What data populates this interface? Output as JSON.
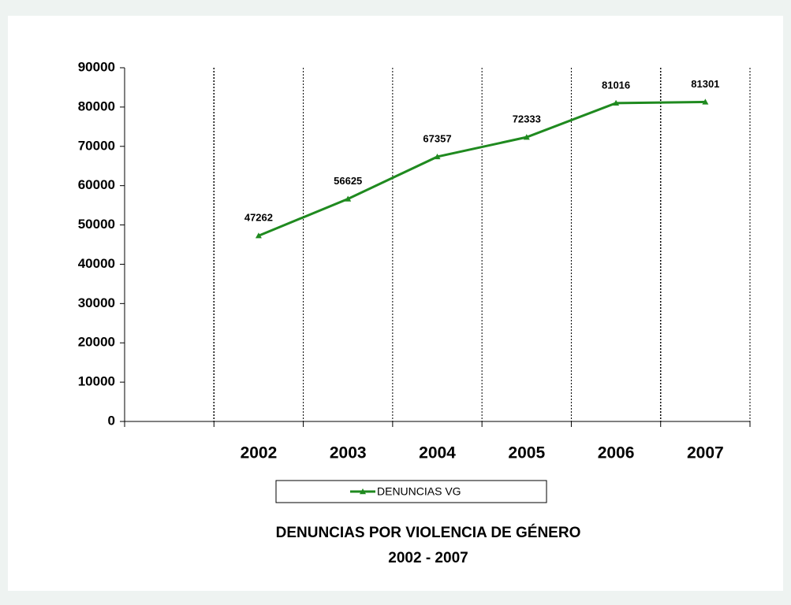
{
  "chart_data": {
    "type": "line",
    "title": "DENUNCIAS POR VIOLENCIA DE GÉNERO",
    "subtitle": "2002 - 2007",
    "categories": [
      null,
      "2002",
      "2003",
      "2004",
      "2005",
      "2006",
      "2007"
    ],
    "series": [
      {
        "name": "DENUNCIAS VG",
        "color": "#1f8a1f",
        "values": [
          null,
          47262,
          56625,
          67357,
          72333,
          81016,
          81301
        ]
      }
    ],
    "ylim": [
      0,
      90000
    ],
    "yticks": [
      0,
      10000,
      20000,
      30000,
      40000,
      50000,
      60000,
      70000,
      80000,
      90000
    ],
    "xgrid": true,
    "data_labels": true,
    "legend": "bottom"
  }
}
